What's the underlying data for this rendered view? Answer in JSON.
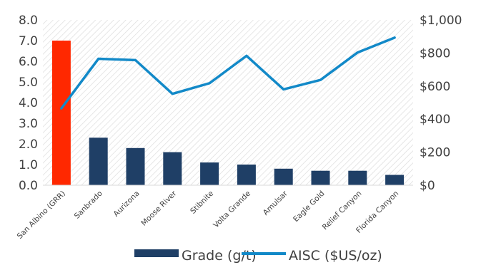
{
  "chart_data": {
    "type": "bar",
    "categories": [
      "San Albino (GRR)",
      "Sanbrado",
      "Aurizona",
      "Moose River",
      "Stibnite",
      "Volta Grande",
      "Amulsar",
      "Eagle Gold",
      "Relief Canyon",
      "Florida Canyon"
    ],
    "series": [
      {
        "name": "Grade (g/t)",
        "type": "bar",
        "axis": "left",
        "values": [
          7.0,
          2.3,
          1.8,
          1.6,
          1.1,
          1.0,
          0.8,
          0.7,
          0.7,
          0.5
        ],
        "color": "#1f3f66",
        "highlight": {
          "index": 0,
          "color": "#ff2800"
        }
      },
      {
        "name": "AISC ($US/oz)",
        "type": "line",
        "axis": "right",
        "values": [
          465,
          765,
          757,
          553,
          617,
          783,
          580,
          637,
          803,
          893
        ],
        "color": "#1289c8"
      }
    ],
    "y_left": {
      "range": [
        0,
        8
      ],
      "ticks": [
        "0.0",
        "1.0",
        "2.0",
        "3.0",
        "4.0",
        "5.0",
        "6.0",
        "7.0",
        "8.0"
      ]
    },
    "y_right": {
      "range": [
        0,
        1000
      ],
      "ticks": [
        "$0",
        "$200",
        "$400",
        "$600",
        "$800",
        "$1,000"
      ]
    },
    "grid": false,
    "plot_background": "diagonal-hatch",
    "legend": {
      "placement": "bottom-center",
      "items": [
        "Grade (g/t)",
        "AISC ($US/oz)"
      ]
    },
    "title": "",
    "xlabel": "",
    "ylabel": ""
  }
}
